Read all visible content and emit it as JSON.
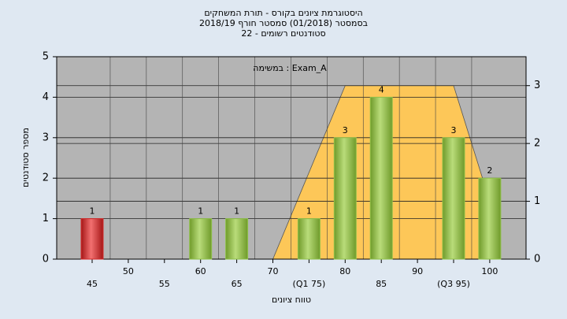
{
  "chart_data": {
    "type": "bar",
    "title": [
      "היסטוגרמת ציונים בקורס - תורת המשחקים",
      "בסמסטר (01/2018)  סמסטר חורף 2018/19",
      "22 - סטודנטים רשומים"
    ],
    "annotation": "במשימה : Exam_A",
    "xlabel": "טווח ציונים",
    "ylabel": "מספר סטודנטים",
    "categories": [
      "45",
      "50",
      "55",
      "60",
      "65",
      "70",
      "(Q1 75)",
      "80",
      "85",
      "90",
      "(Q3 95)",
      "100"
    ],
    "values": [
      1,
      0,
      0,
      1,
      1,
      0,
      1,
      3,
      4,
      0,
      3,
      2
    ],
    "colors": [
      "#d42a2a",
      "#8fc14a",
      "#8fc14a",
      "#8fc14a",
      "#8fc14a",
      "#8fc14a",
      "#8fc14a",
      "#8fc14a",
      "#8fc14a",
      "#8fc14a",
      "#8fc14a",
      "#8fc14a"
    ],
    "area": {
      "color": "#fdc758",
      "axis": "y2",
      "values": [
        null,
        null,
        null,
        null,
        null,
        0,
        1.5,
        3,
        3,
        3,
        3,
        1
      ]
    },
    "ylim": [
      0,
      5
    ],
    "yticks": [
      0,
      1,
      2,
      3,
      4,
      5
    ],
    "y2lim": [
      0,
      3.5
    ],
    "y2ticks": [
      0,
      1,
      2,
      3
    ],
    "grid": true
  }
}
